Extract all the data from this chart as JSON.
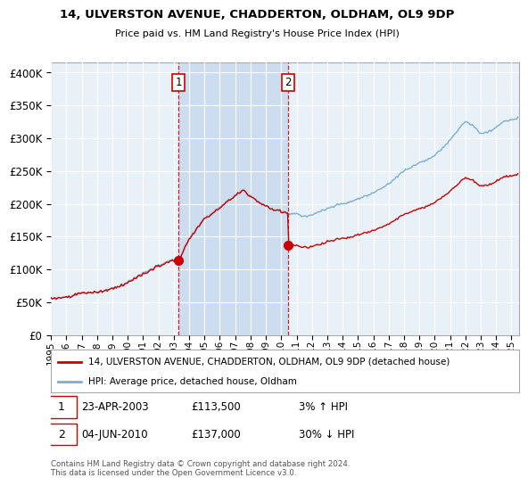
{
  "title": "14, ULVERSTON AVENUE, CHADDERTON, OLDHAM, OL9 9DP",
  "subtitle": "Price paid vs. HM Land Registry's House Price Index (HPI)",
  "sale1_date": "23-APR-2003",
  "sale1_price": 113500,
  "sale1_label": "£113,500",
  "sale1_hpi_diff": "3% ↑ HPI",
  "sale1_x": 2003.31,
  "sale2_date": "04-JUN-2010",
  "sale2_price": 137000,
  "sale2_label": "£137,000",
  "sale2_hpi_diff": "30% ↓ HPI",
  "sale2_x": 2010.46,
  "ylabel_ticks": [
    "£0",
    "£50K",
    "£100K",
    "£150K",
    "£200K",
    "£250K",
    "£300K",
    "£350K",
    "£400K"
  ],
  "ylabel_values": [
    0,
    50000,
    100000,
    150000,
    200000,
    250000,
    300000,
    350000,
    400000
  ],
  "xlim": [
    1995.0,
    2025.5
  ],
  "ylim": [
    0,
    415000
  ],
  "legend_line1": "14, ULVERSTON AVENUE, CHADDERTON, OLDHAM, OL9 9DP (detached house)",
  "legend_line2": "HPI: Average price, detached house, Oldham",
  "footer": "Contains HM Land Registry data © Crown copyright and database right 2024.\nThis data is licensed under the Open Government Licence v3.0.",
  "hpi_color": "#7bafd4",
  "price_color": "#cc0000",
  "shade_color": "#ccddf0",
  "background_color": "#e8f0f8",
  "grid_color": "#ffffff",
  "border_color": "#aaaaaa"
}
